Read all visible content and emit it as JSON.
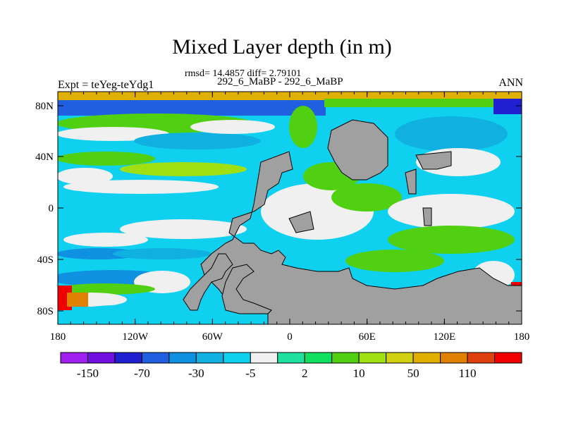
{
  "title": "Mixed Layer depth (in m)",
  "stats_line": "rmsd= 14.4857 diff= 2.79101",
  "case_line": "292_6_MaBP - 292_6_MaBP",
  "left_label": "Expt = teYeg-teYdg1",
  "right_label": "ANN",
  "x_ticks": [
    "180",
    "120W",
    "60W",
    "0",
    "60E",
    "120E",
    "180"
  ],
  "y_ticks": [
    "80N",
    "40N",
    "0",
    "40S",
    "80S"
  ],
  "colorbar": {
    "colors": [
      "#a020f0",
      "#7010e0",
      "#2020d0",
      "#2060e0",
      "#1090e0",
      "#10b0e0",
      "#10d0f0",
      "#f0f0f0",
      "#20e0a0",
      "#10e060",
      "#50d010",
      "#a0e010",
      "#d0d010",
      "#e0b000",
      "#e08000",
      "#e04010",
      "#f00000"
    ],
    "labels": [
      "-150",
      "-70",
      "-30",
      "-5",
      "2",
      "10",
      "50",
      "110"
    ]
  },
  "land_color": "#a0a0a0"
}
